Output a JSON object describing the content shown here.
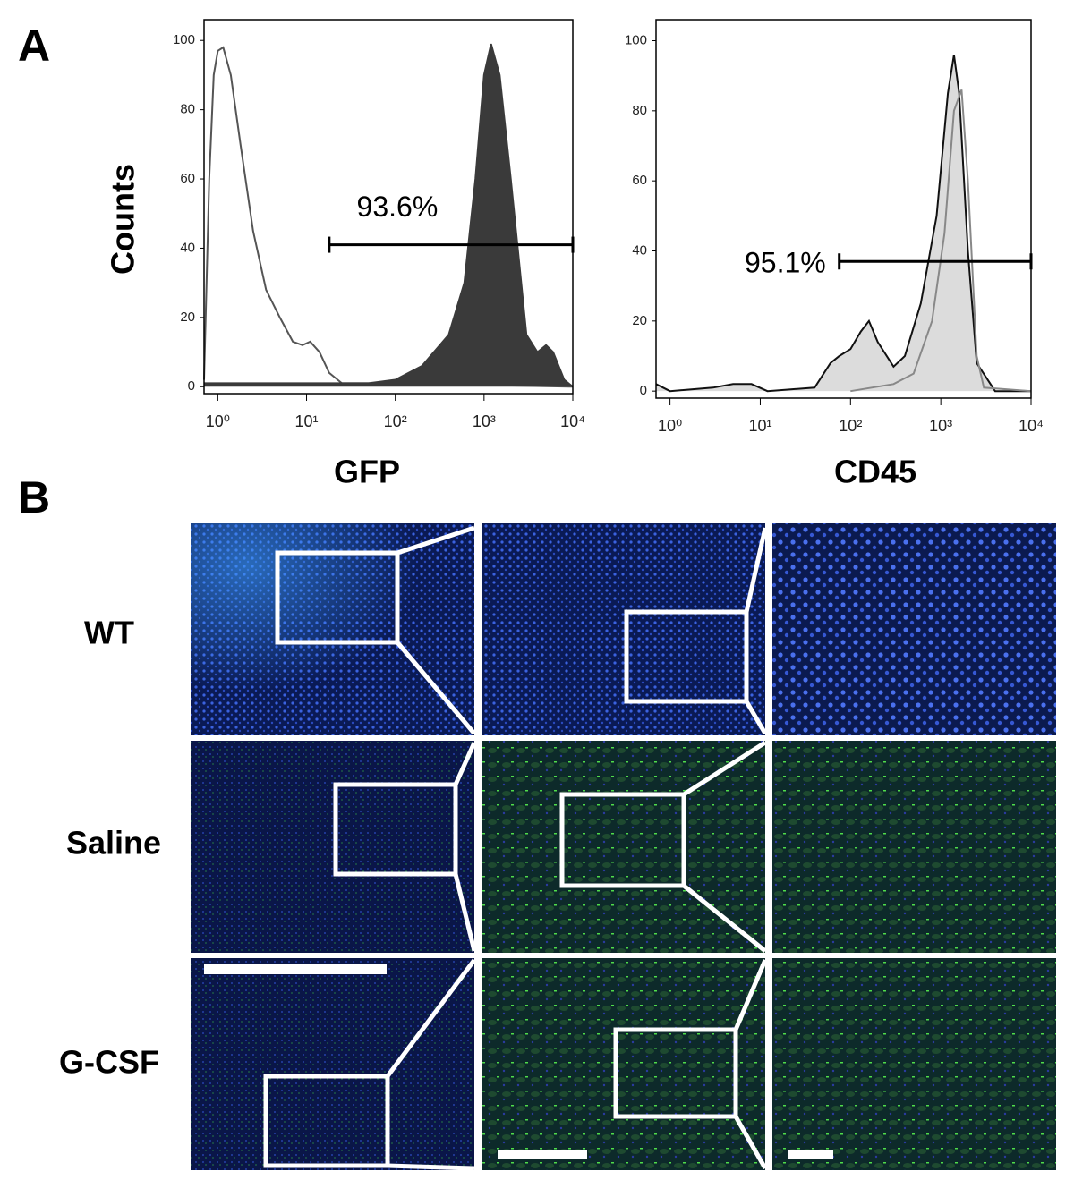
{
  "panel_labels": [
    "A",
    "B"
  ],
  "chart_data": [
    {
      "type": "line",
      "xlabel": "GFP",
      "ylabel": "Counts",
      "xscale": "log",
      "xlim": [
        0.7,
        10000
      ],
      "ylim": [
        -2,
        106
      ],
      "xticks": [
        {
          "value": 1,
          "label": "10⁰"
        },
        {
          "value": 10,
          "label": "10¹"
        },
        {
          "value": 100,
          "label": "10²"
        },
        {
          "value": 1000,
          "label": "10³"
        },
        {
          "value": 10000,
          "label": "10⁴"
        }
      ],
      "yticks": [
        0,
        20,
        40,
        60,
        80,
        100
      ],
      "series": [
        {
          "color": "#555555",
          "fill": false,
          "x": [
            0.7,
            0.8,
            0.9,
            1.0,
            1.15,
            1.4,
            1.8,
            2.5,
            3.5,
            5,
            7,
            9,
            11,
            14,
            18,
            25,
            100,
            10000
          ],
          "values": [
            2,
            60,
            90,
            97,
            98,
            90,
            70,
            45,
            28,
            20,
            13,
            12,
            13,
            10,
            4,
            1,
            1,
            0
          ]
        },
        {
          "color": "#3a3a3a",
          "fill": true,
          "x": [
            0.7,
            10,
            50,
            100,
            200,
            400,
            600,
            800,
            1000,
            1200,
            1500,
            2000,
            3000,
            4000,
            5000,
            6000,
            8000,
            10000
          ],
          "values": [
            1,
            1,
            1,
            2,
            6,
            15,
            30,
            60,
            90,
            99,
            90,
            60,
            15,
            10,
            12,
            10,
            2,
            0
          ]
        }
      ],
      "gate": {
        "label": "93.6%",
        "x": [
          18,
          10000
        ],
        "y": 41
      }
    },
    {
      "type": "line",
      "xlabel": "CD45",
      "xscale": "log",
      "xlim": [
        0.7,
        10000
      ],
      "ylim": [
        -2,
        106
      ],
      "xticks": [
        {
          "value": 1,
          "label": "10⁰"
        },
        {
          "value": 10,
          "label": "10¹"
        },
        {
          "value": 100,
          "label": "10²"
        },
        {
          "value": 1000,
          "label": "10³"
        },
        {
          "value": 10000,
          "label": "10⁴"
        }
      ],
      "yticks": [
        0,
        20,
        40,
        60,
        80,
        100
      ],
      "series": [
        {
          "color": "#111111",
          "fill": true,
          "x": [
            0.7,
            1,
            3,
            5,
            8,
            12,
            40,
            60,
            75,
            100,
            130,
            160,
            200,
            300,
            400,
            600,
            900,
            1200,
            1400,
            1600,
            2000,
            2500,
            4000,
            10000
          ],
          "values": [
            2,
            0,
            1,
            2,
            2,
            0,
            1,
            8,
            10,
            12,
            17,
            20,
            14,
            7,
            10,
            25,
            50,
            85,
            96,
            85,
            40,
            8,
            0,
            0
          ]
        },
        {
          "color": "#888888",
          "fill": false,
          "x": [
            100,
            300,
            500,
            800,
            1100,
            1400,
            1700,
            2000,
            2500,
            3000,
            10000
          ],
          "values": [
            0,
            2,
            5,
            20,
            45,
            80,
            86,
            60,
            10,
            1,
            0
          ]
        }
      ],
      "gate": {
        "label": "95.1%",
        "x": [
          75,
          10000
        ],
        "y": 37
      }
    }
  ],
  "panel_b": {
    "rows": [
      "WT",
      "Saline",
      "G-CSF"
    ]
  }
}
